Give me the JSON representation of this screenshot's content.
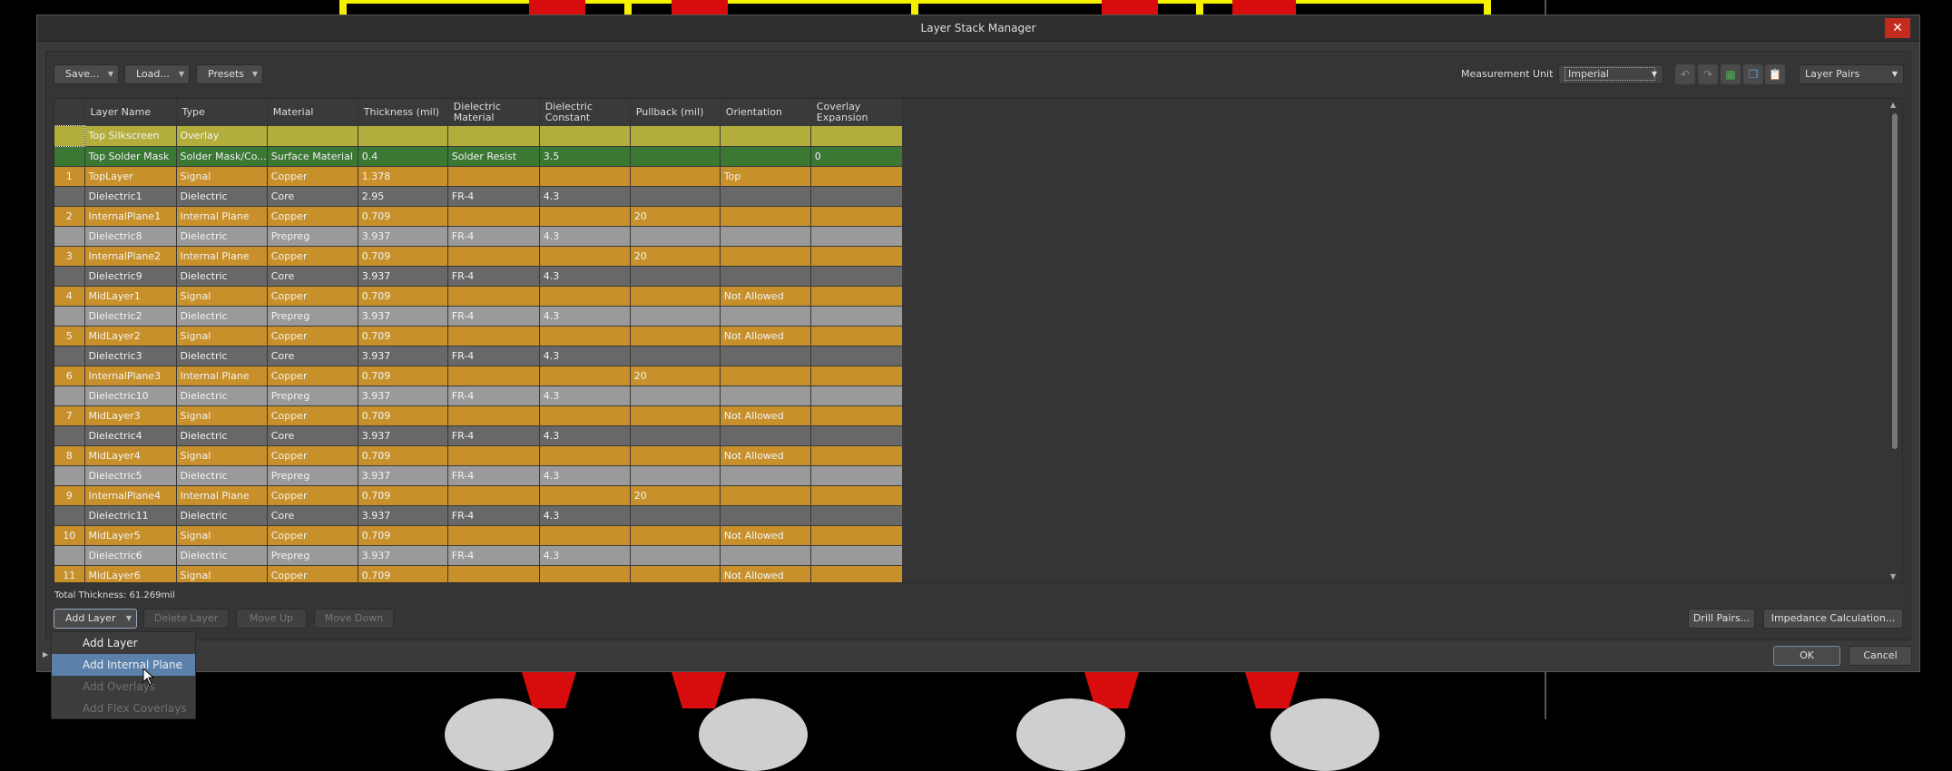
{
  "dialog": {
    "title": "Layer Stack Manager"
  },
  "toolbar": {
    "save": "Save...",
    "load": "Load...",
    "presets": "Presets",
    "measurement_unit_label": "Measurement Unit",
    "measurement_unit_value": "Imperial",
    "view_mode": "Layer Pairs",
    "icons": [
      "undo-icon",
      "redo-icon",
      "layer-3d-icon",
      "copy-icon",
      "paste-icon"
    ]
  },
  "table": {
    "columns": [
      "",
      "Layer Name",
      "Type",
      "Material",
      "Thickness (mil)",
      "Dielectric Material",
      "Dielectric Constant",
      "Pullback (mil)",
      "Orientation",
      "Coverlay Expansion"
    ],
    "rows": [
      {
        "kind": "overlay",
        "cells": [
          "",
          "Top Silkscreen",
          "Overlay",
          "",
          "",
          "",
          "",
          "",
          "",
          ""
        ]
      },
      {
        "kind": "mask",
        "cells": [
          "",
          "Top Solder Mask",
          "Solder Mask/Co...",
          "Surface Material",
          "0.4",
          "Solder Resist",
          "3.5",
          "",
          "",
          "0"
        ]
      },
      {
        "kind": "copper",
        "cells": [
          "1",
          "TopLayer",
          "Signal",
          "Copper",
          "1.378",
          "",
          "",
          "",
          "Top",
          ""
        ]
      },
      {
        "kind": "core",
        "cells": [
          "",
          "Dielectric1",
          "Dielectric",
          "Core",
          "2.95",
          "FR-4",
          "4.3",
          "",
          "",
          ""
        ]
      },
      {
        "kind": "copper",
        "cells": [
          "2",
          "InternalPlane1",
          "Internal Plane",
          "Copper",
          "0.709",
          "",
          "",
          "20",
          "",
          ""
        ]
      },
      {
        "kind": "prepreg",
        "cells": [
          "",
          "Dielectric8",
          "Dielectric",
          "Prepreg",
          "3.937",
          "FR-4",
          "4.3",
          "",
          "",
          ""
        ]
      },
      {
        "kind": "copper",
        "cells": [
          "3",
          "InternalPlane2",
          "Internal Plane",
          "Copper",
          "0.709",
          "",
          "",
          "20",
          "",
          ""
        ]
      },
      {
        "kind": "core",
        "cells": [
          "",
          "Dielectric9",
          "Dielectric",
          "Core",
          "3.937",
          "FR-4",
          "4.3",
          "",
          "",
          ""
        ]
      },
      {
        "kind": "copper",
        "cells": [
          "4",
          "MidLayer1",
          "Signal",
          "Copper",
          "0.709",
          "",
          "",
          "",
          "Not Allowed",
          ""
        ]
      },
      {
        "kind": "prepreg",
        "cells": [
          "",
          "Dielectric2",
          "Dielectric",
          "Prepreg",
          "3.937",
          "FR-4",
          "4.3",
          "",
          "",
          ""
        ]
      },
      {
        "kind": "copper",
        "cells": [
          "5",
          "MidLayer2",
          "Signal",
          "Copper",
          "0.709",
          "",
          "",
          "",
          "Not Allowed",
          ""
        ]
      },
      {
        "kind": "core",
        "cells": [
          "",
          "Dielectric3",
          "Dielectric",
          "Core",
          "3.937",
          "FR-4",
          "4.3",
          "",
          "",
          ""
        ]
      },
      {
        "kind": "copper",
        "cells": [
          "6",
          "InternalPlane3",
          "Internal Plane",
          "Copper",
          "0.709",
          "",
          "",
          "20",
          "",
          ""
        ]
      },
      {
        "kind": "prepreg",
        "cells": [
          "",
          "Dielectric10",
          "Dielectric",
          "Prepreg",
          "3.937",
          "FR-4",
          "4.3",
          "",
          "",
          ""
        ]
      },
      {
        "kind": "copper",
        "cells": [
          "7",
          "MidLayer3",
          "Signal",
          "Copper",
          "0.709",
          "",
          "",
          "",
          "Not Allowed",
          ""
        ]
      },
      {
        "kind": "core",
        "cells": [
          "",
          "Dielectric4",
          "Dielectric",
          "Core",
          "3.937",
          "FR-4",
          "4.3",
          "",
          "",
          ""
        ]
      },
      {
        "kind": "copper",
        "cells": [
          "8",
          "MidLayer4",
          "Signal",
          "Copper",
          "0.709",
          "",
          "",
          "",
          "Not Allowed",
          ""
        ]
      },
      {
        "kind": "prepreg",
        "cells": [
          "",
          "Dielectric5",
          "Dielectric",
          "Prepreg",
          "3.937",
          "FR-4",
          "4.3",
          "",
          "",
          ""
        ]
      },
      {
        "kind": "copper",
        "cells": [
          "9",
          "InternalPlane4",
          "Internal Plane",
          "Copper",
          "0.709",
          "",
          "",
          "20",
          "",
          ""
        ]
      },
      {
        "kind": "core",
        "cells": [
          "",
          "Dielectric11",
          "Dielectric",
          "Core",
          "3.937",
          "FR-4",
          "4.3",
          "",
          "",
          ""
        ]
      },
      {
        "kind": "copper",
        "cells": [
          "10",
          "MidLayer5",
          "Signal",
          "Copper",
          "0.709",
          "",
          "",
          "",
          "Not Allowed",
          ""
        ]
      },
      {
        "kind": "prepreg",
        "cells": [
          "",
          "Dielectric6",
          "Dielectric",
          "Prepreg",
          "3.937",
          "FR-4",
          "4.3",
          "",
          "",
          ""
        ]
      },
      {
        "kind": "copper",
        "cells": [
          "11",
          "MidLayer6",
          "Signal",
          "Copper",
          "0.709",
          "",
          "",
          "",
          "Not Allowed",
          ""
        ]
      }
    ]
  },
  "row_colors": {
    "overlay": "#b3ae3c",
    "mask": "#3a7834",
    "copper": "#c8902a",
    "core": "#686868",
    "prepreg": "#9a9a9a"
  },
  "total_thickness": "Total Thickness: 61.269mil",
  "bottom": {
    "add_layer": "Add Layer",
    "delete_layer": "Delete Layer",
    "move_up": "Move Up",
    "move_down": "Move Down",
    "drill_pairs": "Drill Pairs...",
    "impedance": "Impedance Calculation...",
    "ok": "OK",
    "cancel": "Cancel"
  },
  "add_menu": {
    "items": [
      {
        "label": "Add Layer",
        "state": "normal"
      },
      {
        "label": "Add Internal Plane",
        "state": "highlighted"
      },
      {
        "label": "Add Overlays",
        "state": "disabled"
      },
      {
        "label": "Add Flex Coverlays",
        "state": "disabled"
      }
    ]
  }
}
